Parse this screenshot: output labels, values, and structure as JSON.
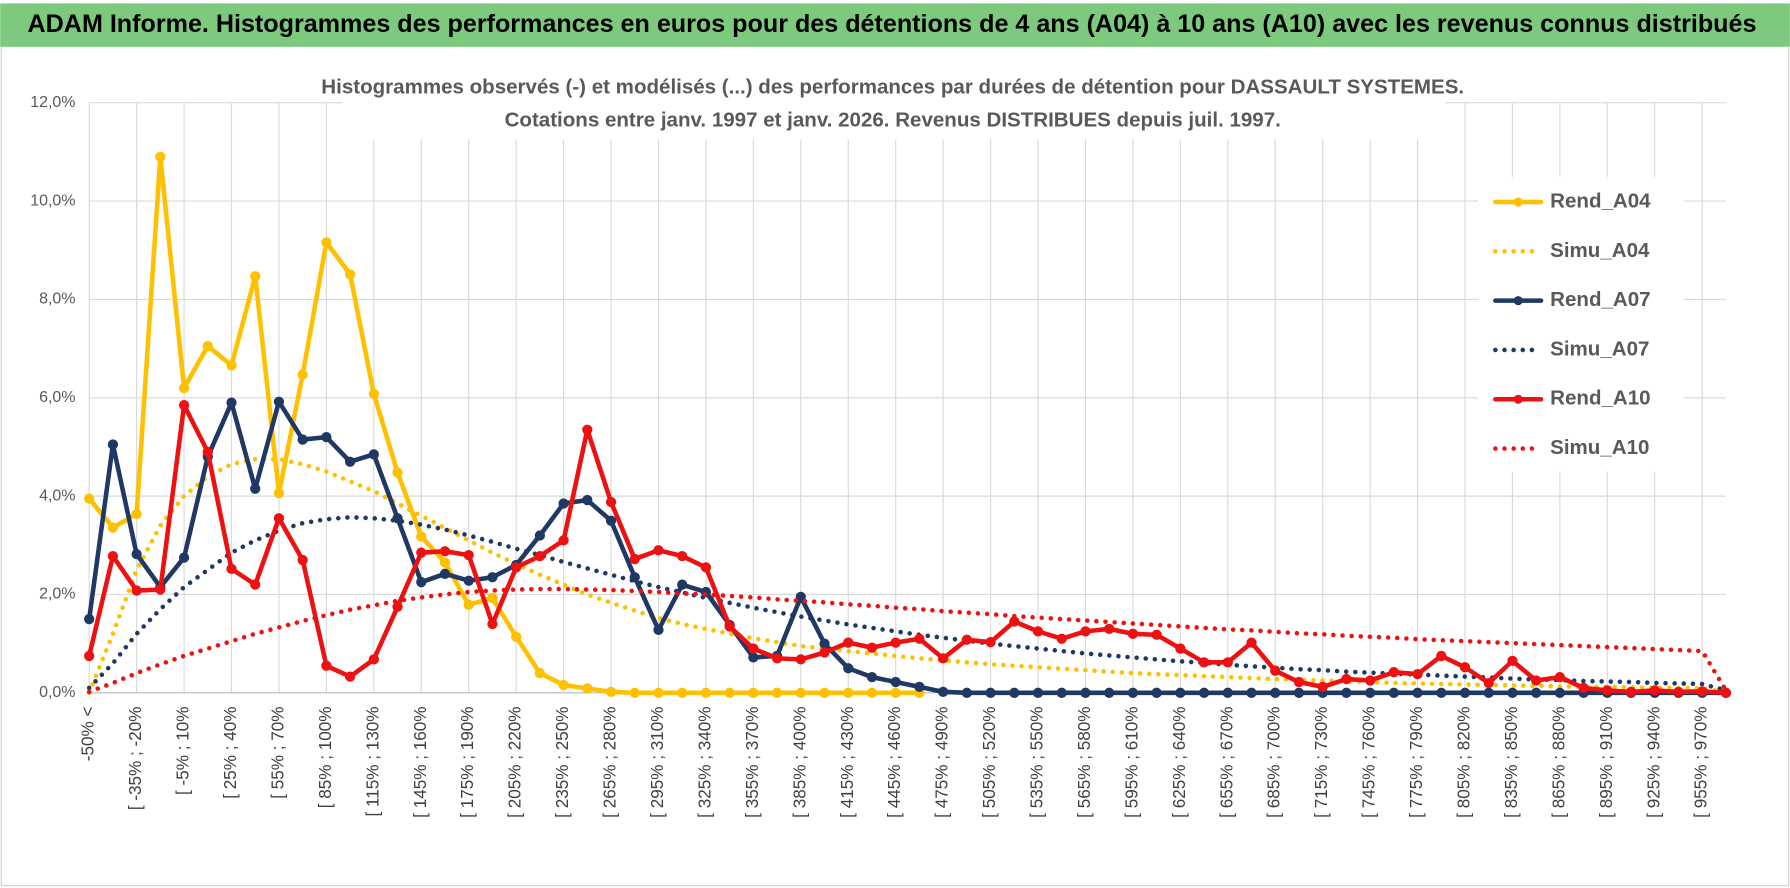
{
  "header": {
    "title": "ADAM Informe. Histogrammes des performances en euros pour des détentions de 4 ans (A04) à 10 ans (A10) avec les revenus connus distribués"
  },
  "chart_data": {
    "type": "line",
    "title": "Histogrammes observés (-) et modélisés (...) des performances par durées de détention pour DASSAULT SYSTEMES.",
    "subtitle": "Cotations entre janv. 1997 et janv. 2026. Revenus DISTRIBUES depuis juil. 1997.",
    "categories": [
      "-50% <",
      null,
      "[ -35% ; -20%",
      null,
      "[ -5% ; 10%",
      null,
      "[ 25% ; 40%",
      null,
      "[ 55% ; 70%",
      null,
      "[ 85% ; 100%",
      null,
      "[ 115% ; 130%",
      null,
      "[ 145% ; 160%",
      null,
      "[ 175% ; 190%",
      null,
      "[ 205% ; 220%",
      null,
      "[ 235% ; 250%",
      null,
      "[ 265% ; 280%",
      null,
      "[ 295% ; 310%",
      null,
      "[ 325% ; 340%",
      null,
      "[ 355% ; 370%",
      null,
      "[ 385% ; 400%",
      null,
      "[ 415% ; 430%",
      null,
      "[ 445% ; 460%",
      null,
      "[ 475% ; 490%",
      null,
      "[ 505% ; 520%",
      null,
      "[ 535% ; 550%",
      null,
      "[ 565% ; 580%",
      null,
      "[ 595% ; 610%",
      null,
      "[ 625% ; 640%",
      null,
      "[ 655% ; 670%",
      null,
      "[ 685% ; 700%",
      null,
      "[ 715% ; 730%",
      null,
      "[ 745% ; 760%",
      null,
      "[ 775% ; 790%",
      null,
      "[ 805% ; 820%",
      null,
      "[ 835% ; 850%",
      null,
      "[ 865% ; 880%",
      null,
      "[ 895% ; 910%",
      null,
      "[ 925% ; 940%",
      null,
      "[ 955% ; 970%",
      null
    ],
    "ylim": [
      0,
      12
    ],
    "yticks": [
      {
        "value": 0,
        "label": "0,0%"
      },
      {
        "value": 2,
        "label": "2,0%"
      },
      {
        "value": 4,
        "label": "4,0%"
      },
      {
        "value": 6,
        "label": "6,0%"
      },
      {
        "value": 8,
        "label": "8,0%"
      },
      {
        "value": 10,
        "label": "10,0%"
      },
      {
        "value": 12,
        "label": "12,0%"
      }
    ],
    "grid": true,
    "legend": "right",
    "series": [
      {
        "name": "Rend_A04",
        "color": "#ffc000",
        "line_style": "solid",
        "markers": true,
        "values": [
          3.95,
          3.36,
          3.64,
          10.9,
          6.2,
          7.05,
          6.66,
          8.47,
          4.06,
          6.47,
          9.16,
          8.51,
          6.08,
          4.48,
          3.18,
          2.65,
          1.79,
          1.93,
          1.14,
          0.4,
          0.16,
          0.09,
          0.02,
          0,
          0,
          0,
          0,
          0,
          0,
          0,
          0,
          0,
          0,
          0,
          0,
          0,
          null,
          null,
          null,
          null,
          null,
          null,
          null,
          null,
          null,
          null,
          null,
          null,
          null,
          null,
          null,
          null,
          null,
          null,
          null,
          null,
          null,
          null,
          null,
          null,
          null,
          null,
          null,
          null,
          null,
          null,
          null,
          null,
          null,
          null
        ]
      },
      {
        "name": "Simu_A04",
        "color": "#ffc000",
        "line_style": "dotted",
        "markers": false,
        "values": [
          0,
          1.2,
          2.5,
          3.4,
          4.0,
          4.4,
          4.65,
          4.75,
          4.75,
          4.65,
          4.5,
          4.3,
          4.1,
          3.85,
          3.6,
          3.35,
          3.1,
          2.85,
          2.62,
          2.4,
          2.2,
          2.0,
          1.83,
          1.67,
          1.52,
          1.4,
          1.3,
          1.2,
          1.11,
          1.03,
          0.95,
          0.9,
          0.85,
          0.8,
          0.75,
          0.7,
          0.66,
          0.62,
          0.58,
          0.55,
          0.52,
          0.49,
          0.46,
          0.43,
          0.4,
          0.38,
          0.36,
          0.34,
          0.32,
          0.3,
          0.28,
          0.26,
          0.25,
          0.23,
          0.22,
          0.2,
          0.19,
          0.18,
          0.17,
          0.16,
          0.15,
          0.14,
          0.13,
          0.12,
          0.12,
          0.11,
          0.1,
          0.1,
          0.09,
          0.02
        ]
      },
      {
        "name": "Rend_A07",
        "color": "#1f3864",
        "line_style": "solid",
        "markers": true,
        "values": [
          1.5,
          5.05,
          2.82,
          2.15,
          2.75,
          4.8,
          5.9,
          4.15,
          5.92,
          5.15,
          5.2,
          4.7,
          4.85,
          3.55,
          2.25,
          2.42,
          2.28,
          2.35,
          2.6,
          3.2,
          3.85,
          3.92,
          3.5,
          2.35,
          1.28,
          2.2,
          2.05,
          1.38,
          0.72,
          0.75,
          1.95,
          1.0,
          0.5,
          0.32,
          0.22,
          0.12,
          0.02,
          0,
          0,
          0,
          0,
          0,
          0,
          0,
          0,
          0,
          0,
          0,
          0,
          0,
          0,
          0,
          0,
          0,
          0,
          0,
          0,
          0,
          0,
          0,
          0,
          0,
          0,
          0,
          0,
          0,
          0,
          0,
          0,
          0
        ]
      },
      {
        "name": "Simu_A07",
        "color": "#1f3864",
        "line_style": "dotted",
        "markers": false,
        "values": [
          0.1,
          0.6,
          1.2,
          1.7,
          2.15,
          2.5,
          2.85,
          3.1,
          3.3,
          3.45,
          3.53,
          3.57,
          3.55,
          3.5,
          3.42,
          3.32,
          3.2,
          3.07,
          2.93,
          2.8,
          2.66,
          2.53,
          2.4,
          2.27,
          2.15,
          2.04,
          1.93,
          1.83,
          1.73,
          1.64,
          1.55,
          1.47,
          1.39,
          1.32,
          1.25,
          1.18,
          1.12,
          1.06,
          1.0,
          0.95,
          0.9,
          0.85,
          0.8,
          0.76,
          0.72,
          0.68,
          0.64,
          0.61,
          0.57,
          0.54,
          0.51,
          0.48,
          0.46,
          0.43,
          0.41,
          0.39,
          0.37,
          0.35,
          0.33,
          0.31,
          0.29,
          0.27,
          0.26,
          0.24,
          0.23,
          0.22,
          0.2,
          0.19,
          0.18,
          0.05
        ]
      },
      {
        "name": "Rend_A10",
        "color": "#ee1111",
        "line_style": "solid",
        "markers": true,
        "values": [
          0.75,
          2.78,
          2.08,
          2.1,
          5.85,
          4.9,
          2.52,
          2.2,
          3.55,
          2.7,
          0.55,
          0.33,
          0.68,
          1.75,
          2.85,
          2.88,
          2.8,
          1.4,
          2.55,
          2.78,
          3.1,
          5.35,
          3.88,
          2.72,
          2.9,
          2.78,
          2.55,
          1.35,
          0.9,
          0.7,
          0.68,
          0.82,
          1.02,
          0.92,
          1.02,
          1.1,
          0.7,
          1.08,
          1.03,
          1.45,
          1.25,
          1.1,
          1.25,
          1.3,
          1.2,
          1.18,
          0.9,
          0.62,
          0.62,
          1.02,
          0.45,
          0.22,
          0.12,
          0.28,
          0.25,
          0.42,
          0.38,
          0.75,
          0.52,
          0.2,
          0.65,
          0.25,
          0.32,
          0.1,
          0.05,
          0.02,
          0.05,
          0.02,
          0.03,
          0
        ]
      },
      {
        "name": "Simu_A10",
        "color": "#ee1111",
        "line_style": "dotted",
        "markers": false,
        "values": [
          0.02,
          0.2,
          0.4,
          0.58,
          0.75,
          0.9,
          1.05,
          1.2,
          1.33,
          1.46,
          1.58,
          1.69,
          1.78,
          1.87,
          1.94,
          2.0,
          2.05,
          2.08,
          2.1,
          2.11,
          2.11,
          2.1,
          2.09,
          2.07,
          2.05,
          2.02,
          2.0,
          1.97,
          1.94,
          1.9,
          1.87,
          1.84,
          1.8,
          1.77,
          1.73,
          1.7,
          1.66,
          1.63,
          1.6,
          1.56,
          1.53,
          1.5,
          1.47,
          1.44,
          1.41,
          1.38,
          1.35,
          1.32,
          1.29,
          1.27,
          1.24,
          1.21,
          1.19,
          1.16,
          1.14,
          1.12,
          1.09,
          1.07,
          1.05,
          1.03,
          1.01,
          0.99,
          0.97,
          0.95,
          0.93,
          0.91,
          0.89,
          0.87,
          0.85,
          0.05
        ]
      }
    ]
  }
}
